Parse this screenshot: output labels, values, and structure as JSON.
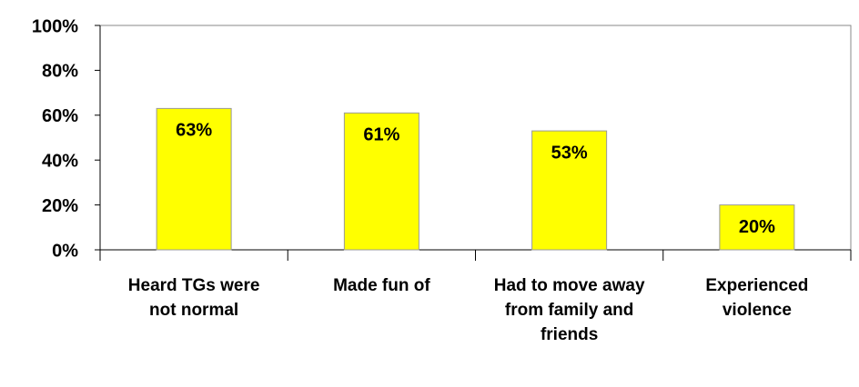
{
  "chart_data": {
    "type": "bar",
    "categories": [
      "Heard TGs were not normal",
      "Made fun of",
      "Had to move away from family and friends",
      "Experienced violence"
    ],
    "values": [
      63,
      61,
      53,
      20
    ],
    "value_labels": [
      "63%",
      "61%",
      "53%",
      "20%"
    ],
    "color": "#ffff00",
    "ylim": [
      0,
      100
    ],
    "yticks": [
      {
        "value": 0,
        "label": "0%"
      },
      {
        "value": 20,
        "label": "20%"
      },
      {
        "value": 40,
        "label": "40%"
      },
      {
        "value": 60,
        "label": "60%"
      },
      {
        "value": 80,
        "label": "80%"
      },
      {
        "value": 100,
        "label": "100%"
      }
    ],
    "grid": false
  }
}
